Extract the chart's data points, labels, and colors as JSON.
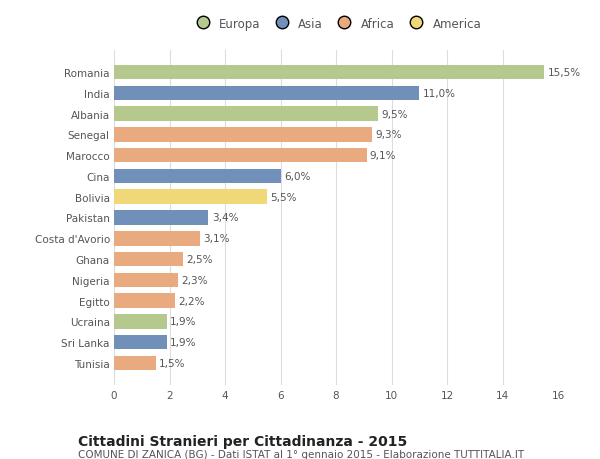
{
  "categories": [
    "Romania",
    "India",
    "Albania",
    "Senegal",
    "Marocco",
    "Cina",
    "Bolivia",
    "Pakistan",
    "Costa d'Avorio",
    "Ghana",
    "Nigeria",
    "Egitto",
    "Ucraina",
    "Sri Lanka",
    "Tunisia"
  ],
  "values": [
    15.5,
    11.0,
    9.5,
    9.3,
    9.1,
    6.0,
    5.5,
    3.4,
    3.1,
    2.5,
    2.3,
    2.2,
    1.9,
    1.9,
    1.5
  ],
  "labels": [
    "15,5%",
    "11,0%",
    "9,5%",
    "9,3%",
    "9,1%",
    "6,0%",
    "5,5%",
    "3,4%",
    "3,1%",
    "2,5%",
    "2,3%",
    "2,2%",
    "1,9%",
    "1,9%",
    "1,5%"
  ],
  "colors": [
    "#b5c98e",
    "#7090ba",
    "#b5c98e",
    "#e8aa7e",
    "#e8aa7e",
    "#7090ba",
    "#f0d878",
    "#7090ba",
    "#e8aa7e",
    "#e8aa7e",
    "#e8aa7e",
    "#e8aa7e",
    "#b5c98e",
    "#7090ba",
    "#e8aa7e"
  ],
  "legend_labels": [
    "Europa",
    "Asia",
    "Africa",
    "America"
  ],
  "legend_colors": [
    "#b5c98e",
    "#7090ba",
    "#e8aa7e",
    "#f0d878"
  ],
  "title": "Cittadini Stranieri per Cittadinanza - 2015",
  "subtitle": "COMUNE DI ZANICA (BG) - Dati ISTAT al 1° gennaio 2015 - Elaborazione TUTTITALIA.IT",
  "xlim": [
    0,
    16
  ],
  "xticks": [
    0,
    2,
    4,
    6,
    8,
    10,
    12,
    14,
    16
  ],
  "background_color": "#ffffff",
  "grid_color": "#dddddd",
  "bar_height": 0.7,
  "title_fontsize": 10,
  "subtitle_fontsize": 7.5,
  "label_fontsize": 7.5,
  "tick_fontsize": 7.5,
  "legend_fontsize": 8.5
}
